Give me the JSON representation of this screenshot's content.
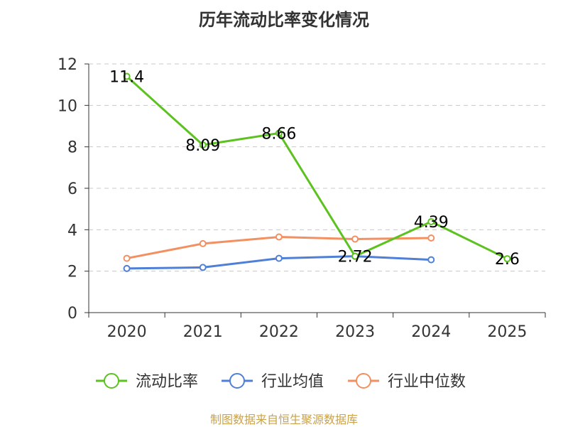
{
  "chart_data": {
    "type": "line",
    "title": "历年流动比率变化情况",
    "categories": [
      "2020",
      "2021",
      "2022",
      "2023",
      "2024",
      "2025"
    ],
    "ylim": [
      0,
      12
    ],
    "yticks": [
      0,
      2,
      4,
      6,
      8,
      10,
      12
    ],
    "grid": "horizontal-dashed",
    "legend_position": "bottom",
    "series": [
      {
        "name": "流动比率",
        "color": "#5cc21f",
        "values": [
          11.4,
          8.09,
          8.66,
          2.72,
          4.39,
          2.6
        ],
        "labels": [
          "11.4",
          "8.09",
          "8.66",
          "2.72",
          "4.39",
          "2.6"
        ]
      },
      {
        "name": "行业均值",
        "color": "#4f7fd6",
        "values": [
          2.13,
          2.18,
          2.62,
          2.72,
          2.55,
          null
        ]
      },
      {
        "name": "行业中位数",
        "color": "#f39061",
        "values": [
          2.62,
          3.33,
          3.65,
          3.55,
          3.6,
          null
        ]
      }
    ],
    "source": "制图数据来自恒生聚源数据库"
  }
}
